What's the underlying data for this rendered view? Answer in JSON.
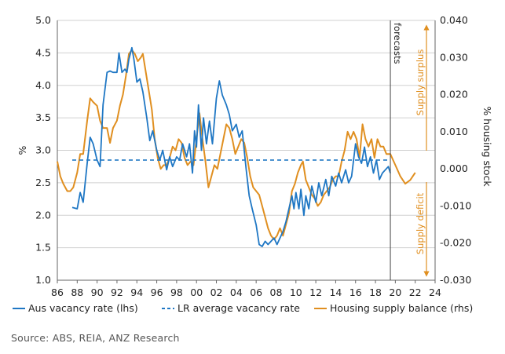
{
  "source": "Source: ABS, REIA, ANZ Research",
  "chart_data": {
    "type": "line",
    "title": "",
    "xlabel": "",
    "ylabel_left": "%",
    "ylabel_right": "% housing stock",
    "x_range": [
      1986,
      2024
    ],
    "x_tick_labels": [
      "86",
      "88",
      "90",
      "92",
      "94",
      "96",
      "98",
      "00",
      "02",
      "04",
      "06",
      "08",
      "10",
      "12",
      "14",
      "16",
      "18",
      "20",
      "22",
      "24"
    ],
    "ylim_left": [
      1.0,
      5.0
    ],
    "y_left_tick_labels": [
      "1.0",
      "1.5",
      "2.0",
      "2.5",
      "3.0",
      "3.5",
      "4.0",
      "4.5",
      "5.0"
    ],
    "ylim_right": [
      -0.03,
      0.04
    ],
    "y_right_tick_labels": [
      "-0.030",
      "-0.020",
      "-0.010",
      "0.000",
      "0.010",
      "0.020",
      "0.030",
      "0.040"
    ],
    "grid": "horizontal",
    "legend_position": "bottom",
    "annotations": {
      "forecasts": "forecasts",
      "forecast_year": 2019.5,
      "supply_surplus": "Supply surplus",
      "supply_deficit": "Supply deficit"
    },
    "colors": {
      "vacancy": "#1f77c4",
      "lr_average": "#1f77c4",
      "supply": "#e08f20",
      "grid": "#d0d0d0",
      "forecast_line": "#444444"
    },
    "series": [
      {
        "name": "Aus vacancy rate (lhs)",
        "axis": "left",
        "style": "solid",
        "points": [
          [
            1987.5,
            2.12
          ],
          [
            1988.0,
            2.1
          ],
          [
            1988.3,
            2.35
          ],
          [
            1988.6,
            2.2
          ],
          [
            1989.0,
            2.8
          ],
          [
            1989.3,
            3.2
          ],
          [
            1989.6,
            3.1
          ],
          [
            1990.0,
            2.85
          ],
          [
            1990.3,
            2.75
          ],
          [
            1990.6,
            3.7
          ],
          [
            1991.0,
            4.2
          ],
          [
            1991.3,
            4.22
          ],
          [
            1991.6,
            4.2
          ],
          [
            1992.0,
            4.2
          ],
          [
            1992.2,
            4.5
          ],
          [
            1992.5,
            4.2
          ],
          [
            1992.8,
            4.25
          ],
          [
            1993.0,
            4.2
          ],
          [
            1993.2,
            4.4
          ],
          [
            1993.5,
            4.58
          ],
          [
            1993.7,
            4.4
          ],
          [
            1994.0,
            4.05
          ],
          [
            1994.3,
            4.1
          ],
          [
            1994.6,
            3.9
          ],
          [
            1995.0,
            3.5
          ],
          [
            1995.3,
            3.15
          ],
          [
            1995.6,
            3.3
          ],
          [
            1996.0,
            3.0
          ],
          [
            1996.3,
            2.85
          ],
          [
            1996.6,
            3.0
          ],
          [
            1997.0,
            2.7
          ],
          [
            1997.3,
            2.9
          ],
          [
            1997.6,
            2.75
          ],
          [
            1998.0,
            2.9
          ],
          [
            1998.3,
            2.85
          ],
          [
            1998.6,
            3.1
          ],
          [
            1999.0,
            2.9
          ],
          [
            1999.3,
            3.1
          ],
          [
            1999.6,
            2.65
          ],
          [
            1999.8,
            3.3
          ],
          [
            2000.0,
            3.05
          ],
          [
            2000.2,
            3.7
          ],
          [
            2000.5,
            3.0
          ],
          [
            2000.7,
            3.5
          ],
          [
            2001.0,
            3.1
          ],
          [
            2001.3,
            3.45
          ],
          [
            2001.6,
            3.1
          ],
          [
            2002.0,
            3.8
          ],
          [
            2002.3,
            4.07
          ],
          [
            2002.6,
            3.85
          ],
          [
            2003.0,
            3.7
          ],
          [
            2003.3,
            3.55
          ],
          [
            2003.6,
            3.3
          ],
          [
            2004.0,
            3.4
          ],
          [
            2004.3,
            3.2
          ],
          [
            2004.6,
            3.3
          ],
          [
            2005.0,
            2.7
          ],
          [
            2005.3,
            2.3
          ],
          [
            2005.6,
            2.1
          ],
          [
            2006.0,
            1.85
          ],
          [
            2006.3,
            1.55
          ],
          [
            2006.6,
            1.52
          ],
          [
            2006.9,
            1.6
          ],
          [
            2007.2,
            1.55
          ],
          [
            2007.5,
            1.6
          ],
          [
            2007.8,
            1.65
          ],
          [
            2008.1,
            1.55
          ],
          [
            2008.4,
            1.65
          ],
          [
            2008.7,
            1.75
          ],
          [
            2009.0,
            1.9
          ],
          [
            2009.3,
            2.1
          ],
          [
            2009.6,
            2.3
          ],
          [
            2009.8,
            2.1
          ],
          [
            2010.0,
            2.35
          ],
          [
            2010.3,
            2.1
          ],
          [
            2010.5,
            2.4
          ],
          [
            2010.8,
            2.0
          ],
          [
            2011.0,
            2.3
          ],
          [
            2011.3,
            2.1
          ],
          [
            2011.6,
            2.45
          ],
          [
            2012.0,
            2.2
          ],
          [
            2012.3,
            2.5
          ],
          [
            2012.6,
            2.3
          ],
          [
            2013.0,
            2.55
          ],
          [
            2013.3,
            2.3
          ],
          [
            2013.6,
            2.6
          ],
          [
            2014.0,
            2.45
          ],
          [
            2014.3,
            2.65
          ],
          [
            2014.6,
            2.5
          ],
          [
            2015.0,
            2.7
          ],
          [
            2015.3,
            2.5
          ],
          [
            2015.6,
            2.6
          ],
          [
            2016.0,
            3.1
          ],
          [
            2016.3,
            2.9
          ],
          [
            2016.6,
            2.8
          ],
          [
            2016.9,
            3.05
          ],
          [
            2017.2,
            2.75
          ],
          [
            2017.5,
            2.9
          ],
          [
            2017.8,
            2.65
          ],
          [
            2018.1,
            2.85
          ],
          [
            2018.4,
            2.55
          ],
          [
            2018.7,
            2.65
          ],
          [
            2019.0,
            2.7
          ],
          [
            2019.3,
            2.75
          ],
          [
            2019.5,
            2.65
          ]
        ]
      },
      {
        "name": "LR average vacancy rate",
        "axis": "left",
        "style": "dashed",
        "points": [
          [
            1987.5,
            2.85
          ],
          [
            2019.5,
            2.85
          ]
        ]
      },
      {
        "name": "Housing supply balance (rhs)",
        "axis": "right",
        "style": "solid",
        "points": [
          [
            1986.0,
            0.002
          ],
          [
            1986.3,
            -0.002
          ],
          [
            1986.6,
            -0.004
          ],
          [
            1987.0,
            -0.006
          ],
          [
            1987.3,
            -0.006
          ],
          [
            1987.6,
            -0.005
          ],
          [
            1988.0,
            -0.001
          ],
          [
            1988.3,
            0.004
          ],
          [
            1988.6,
            0.004
          ],
          [
            1989.0,
            0.013
          ],
          [
            1989.3,
            0.019
          ],
          [
            1989.6,
            0.018
          ],
          [
            1990.0,
            0.017
          ],
          [
            1990.3,
            0.013
          ],
          [
            1990.6,
            0.011
          ],
          [
            1991.0,
            0.011
          ],
          [
            1991.3,
            0.007
          ],
          [
            1991.6,
            0.011
          ],
          [
            1992.0,
            0.013
          ],
          [
            1992.3,
            0.017
          ],
          [
            1992.6,
            0.02
          ],
          [
            1992.9,
            0.025
          ],
          [
            1993.2,
            0.031
          ],
          [
            1993.5,
            0.032
          ],
          [
            1993.8,
            0.031
          ],
          [
            1994.1,
            0.029
          ],
          [
            1994.4,
            0.03
          ],
          [
            1994.6,
            0.031
          ],
          [
            1994.9,
            0.026
          ],
          [
            1995.2,
            0.021
          ],
          [
            1995.5,
            0.016
          ],
          [
            1995.8,
            0.008
          ],
          [
            1996.1,
            0.003
          ],
          [
            1996.4,
            0.0
          ],
          [
            1996.7,
            0.001
          ],
          [
            1997.0,
            0.001
          ],
          [
            1997.3,
            0.003
          ],
          [
            1997.6,
            0.006
          ],
          [
            1997.9,
            0.005
          ],
          [
            1998.2,
            0.008
          ],
          [
            1998.5,
            0.007
          ],
          [
            1998.8,
            0.003
          ],
          [
            1999.1,
            0.001
          ],
          [
            1999.4,
            0.002
          ],
          [
            1999.7,
            0.001
          ],
          [
            2000.0,
            0.008
          ],
          [
            2000.3,
            0.015
          ],
          [
            2000.6,
            0.008
          ],
          [
            2000.9,
            0.002
          ],
          [
            2001.2,
            -0.005
          ],
          [
            2001.5,
            -0.002
          ],
          [
            2001.8,
            0.001
          ],
          [
            2002.1,
            0.0
          ],
          [
            2002.4,
            0.004
          ],
          [
            2002.7,
            0.008
          ],
          [
            2003.0,
            0.012
          ],
          [
            2003.3,
            0.011
          ],
          [
            2003.6,
            0.008
          ],
          [
            2003.9,
            0.004
          ],
          [
            2004.2,
            0.006
          ],
          [
            2004.5,
            0.008
          ],
          [
            2004.8,
            0.007
          ],
          [
            2005.1,
            0.003
          ],
          [
            2005.4,
            -0.002
          ],
          [
            2005.7,
            -0.005
          ],
          [
            2006.0,
            -0.006
          ],
          [
            2006.3,
            -0.007
          ],
          [
            2006.6,
            -0.01
          ],
          [
            2006.9,
            -0.013
          ],
          [
            2007.2,
            -0.016
          ],
          [
            2007.5,
            -0.018
          ],
          [
            2007.8,
            -0.019
          ],
          [
            2008.1,
            -0.018
          ],
          [
            2008.4,
            -0.016
          ],
          [
            2008.7,
            -0.018
          ],
          [
            2009.0,
            -0.015
          ],
          [
            2009.3,
            -0.012
          ],
          [
            2009.6,
            -0.006
          ],
          [
            2009.9,
            -0.004
          ],
          [
            2010.2,
            -0.001
          ],
          [
            2010.5,
            0.001
          ],
          [
            2010.7,
            0.002
          ],
          [
            2011.0,
            -0.003
          ],
          [
            2011.3,
            -0.005
          ],
          [
            2011.6,
            -0.007
          ],
          [
            2011.9,
            -0.008
          ],
          [
            2012.2,
            -0.01
          ],
          [
            2012.5,
            -0.009
          ],
          [
            2012.8,
            -0.007
          ],
          [
            2013.1,
            -0.006
          ],
          [
            2013.4,
            -0.005
          ],
          [
            2013.7,
            -0.003
          ],
          [
            2014.0,
            -0.002
          ],
          [
            2014.3,
            -0.002
          ],
          [
            2014.6,
            0.002
          ],
          [
            2014.9,
            0.005
          ],
          [
            2015.2,
            0.01
          ],
          [
            2015.5,
            0.008
          ],
          [
            2015.8,
            0.01
          ],
          [
            2016.1,
            0.008
          ],
          [
            2016.4,
            0.003
          ],
          [
            2016.7,
            0.012
          ],
          [
            2017.0,
            0.008
          ],
          [
            2017.3,
            0.006
          ],
          [
            2017.6,
            0.008
          ],
          [
            2017.9,
            0.003
          ],
          [
            2018.2,
            0.008
          ],
          [
            2018.5,
            0.006
          ],
          [
            2018.8,
            0.006
          ],
          [
            2019.1,
            0.004
          ],
          [
            2019.5,
            0.004
          ],
          [
            2020.0,
            0.001
          ],
          [
            2020.5,
            -0.002
          ],
          [
            2021.0,
            -0.004
          ],
          [
            2021.5,
            -0.003
          ],
          [
            2022.0,
            -0.001
          ]
        ]
      }
    ]
  }
}
